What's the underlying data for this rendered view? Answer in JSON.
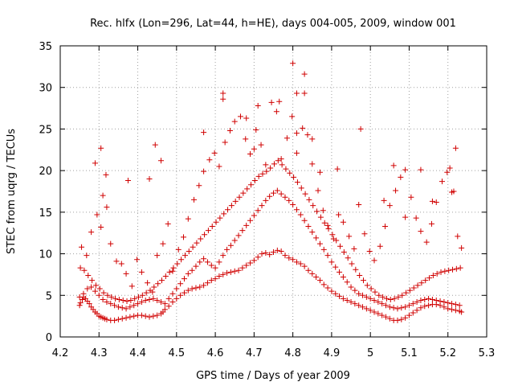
{
  "chart_data": {
    "type": "scatter",
    "title": "Rec. hlfx (Lon=296, Lat=44, h=HE), days 004-005, 2009, window 001",
    "xlabel": "GPS time / Days of year 2009",
    "ylabel": "STEC from uqrg / TECUs",
    "xlim": [
      4.2,
      5.3
    ],
    "ylim": [
      0,
      35
    ],
    "xticks": [
      "4.2",
      "4.3",
      "4.4",
      "4.5",
      "4.6",
      "4.7",
      "4.8",
      "4.9",
      "5",
      "5.1",
      "5.2",
      "5.3"
    ],
    "yticks": [
      "0",
      "5",
      "10",
      "15",
      "20",
      "25",
      "30",
      "35"
    ],
    "grid": true,
    "marker": "+",
    "color": "#d00000",
    "series": [
      {
        "x": [
          4.25,
          4.252,
          4.257,
          4.26,
          4.265,
          4.27,
          4.275,
          4.28,
          4.285,
          4.29,
          4.295,
          4.3,
          4.305,
          4.31,
          4.315,
          4.32,
          4.33,
          4.34,
          4.35,
          4.36,
          4.37,
          4.38,
          4.39,
          4.4,
          4.41,
          4.42,
          4.43,
          4.44,
          4.45,
          4.46,
          4.465,
          4.47,
          4.48,
          4.49,
          4.5,
          4.51,
          4.52,
          4.53,
          4.54,
          4.55,
          4.56,
          4.57,
          4.58,
          4.59,
          4.6,
          4.61,
          4.62,
          4.63,
          4.64,
          4.65,
          4.66,
          4.67,
          4.68,
          4.69,
          4.7,
          4.71,
          4.72,
          4.73,
          4.74,
          4.75,
          4.76,
          4.77,
          4.78,
          4.79,
          4.8,
          4.81,
          4.82,
          4.83,
          4.84,
          4.85,
          4.86,
          4.87,
          4.88,
          4.89,
          4.9,
          4.91,
          4.92,
          4.93,
          4.94,
          4.95,
          4.96,
          4.97,
          4.98,
          4.99,
          5.0,
          5.01,
          5.02,
          5.03,
          5.04,
          5.05,
          5.06,
          5.07,
          5.08,
          5.09,
          5.1,
          5.11,
          5.12,
          5.13,
          5.14,
          5.15,
          5.16,
          5.17,
          5.18,
          5.19,
          5.2,
          5.21,
          5.22,
          5.23,
          5.235
        ],
        "y": [
          3.8,
          4.1,
          4.5,
          4.8,
          4.6,
          4.3,
          4.0,
          3.6,
          3.3,
          3.0,
          2.8,
          2.5,
          2.4,
          2.3,
          2.2,
          2.1,
          2.0,
          2.0,
          2.1,
          2.2,
          2.3,
          2.4,
          2.5,
          2.6,
          2.6,
          2.5,
          2.4,
          2.5,
          2.6,
          2.8,
          3.0,
          3.3,
          3.7,
          4.2,
          4.6,
          5.0,
          5.3,
          5.6,
          5.8,
          5.9,
          6.0,
          6.2,
          6.5,
          6.8,
          7.0,
          7.3,
          7.5,
          7.7,
          7.8,
          7.9,
          8.0,
          8.3,
          8.6,
          8.9,
          9.2,
          9.6,
          10.0,
          10.1,
          9.9,
          10.2,
          10.4,
          10.3,
          9.8,
          9.5,
          9.3,
          9.0,
          8.8,
          8.5,
          8.0,
          7.6,
          7.2,
          6.8,
          6.3,
          5.9,
          5.5,
          5.2,
          4.9,
          4.6,
          4.4,
          4.2,
          4.0,
          3.8,
          3.6,
          3.4,
          3.2,
          3.0,
          2.8,
          2.6,
          2.4,
          2.2,
          2.0,
          2.0,
          2.1,
          2.3,
          2.6,
          2.9,
          3.2,
          3.5,
          3.7,
          3.8,
          3.9,
          3.9,
          3.8,
          3.6,
          3.4,
          3.3,
          3.2,
          3.1,
          3.0
        ]
      },
      {
        "x": [
          4.25,
          4.26,
          4.27,
          4.28,
          4.29,
          4.3,
          4.31,
          4.32,
          4.33,
          4.34,
          4.35,
          4.36,
          4.37,
          4.38,
          4.39,
          4.4,
          4.41,
          4.42,
          4.43,
          4.44,
          4.45,
          4.46,
          4.47,
          4.48,
          4.49,
          4.5,
          4.51,
          4.52,
          4.53,
          4.54,
          4.55,
          4.56,
          4.57,
          4.58,
          4.59,
          4.6,
          4.61,
          4.62,
          4.63,
          4.64,
          4.65,
          4.66,
          4.67,
          4.68,
          4.69,
          4.7,
          4.71,
          4.72,
          4.73,
          4.74,
          4.75,
          4.76,
          4.77,
          4.78,
          4.79,
          4.8,
          4.81,
          4.82,
          4.83,
          4.84,
          4.85,
          4.86,
          4.87,
          4.88,
          4.89,
          4.9,
          4.91,
          4.92,
          4.93,
          4.94,
          4.95,
          4.96,
          4.97,
          4.98,
          4.99,
          5.0,
          5.01,
          5.02,
          5.03,
          5.04,
          5.05,
          5.06,
          5.07,
          5.08,
          5.09,
          5.1,
          5.11,
          5.12,
          5.13,
          5.14,
          5.15,
          5.16,
          5.17,
          5.18,
          5.19,
          5.2,
          5.21,
          5.22,
          5.23
        ],
        "y": [
          4.8,
          5.2,
          5.8,
          6.0,
          5.5,
          5.0,
          4.5,
          4.2,
          4.0,
          3.8,
          3.6,
          3.5,
          3.4,
          3.6,
          3.8,
          4.0,
          4.2,
          4.4,
          4.5,
          4.6,
          4.4,
          4.2,
          4.0,
          4.6,
          5.2,
          5.8,
          6.4,
          7.0,
          7.6,
          8.0,
          8.5,
          9.0,
          9.4,
          9.0,
          8.6,
          8.3,
          9.0,
          9.8,
          10.5,
          11.0,
          11.6,
          12.2,
          12.8,
          13.4,
          14.0,
          14.6,
          15.2,
          15.8,
          16.4,
          16.9,
          17.3,
          17.6,
          17.2,
          16.8,
          16.4,
          15.9,
          15.3,
          14.7,
          14.0,
          13.3,
          12.6,
          11.9,
          11.2,
          10.5,
          9.8,
          9.0,
          8.4,
          7.8,
          7.2,
          6.6,
          6.0,
          5.6,
          5.2,
          5.0,
          4.8,
          4.6,
          4.4,
          4.2,
          4.0,
          3.8,
          3.6,
          3.5,
          3.4,
          3.5,
          3.6,
          3.8,
          4.0,
          4.2,
          4.4,
          4.5,
          4.6,
          4.5,
          4.4,
          4.3,
          4.2,
          4.1,
          4.0,
          3.9,
          3.8
        ]
      },
      {
        "x": [
          4.252,
          4.262,
          4.272,
          4.282,
          4.292,
          4.302,
          4.312,
          4.322,
          4.332,
          4.342,
          4.352,
          4.362,
          4.372,
          4.382,
          4.392,
          4.402,
          4.412,
          4.422,
          4.432,
          4.442,
          4.452,
          4.462,
          4.472,
          4.482,
          4.492,
          4.502,
          4.512,
          4.522,
          4.532,
          4.542,
          4.552,
          4.562,
          4.572,
          4.582,
          4.592,
          4.602,
          4.612,
          4.622,
          4.632,
          4.642,
          4.652,
          4.662,
          4.672,
          4.682,
          4.692,
          4.702,
          4.712,
          4.722,
          4.732,
          4.742,
          4.752,
          4.762,
          4.772,
          4.782,
          4.792,
          4.802,
          4.812,
          4.822,
          4.832,
          4.842,
          4.852,
          4.862,
          4.872,
          4.882,
          4.892,
          4.902,
          4.912,
          4.922,
          4.932,
          4.942,
          4.952,
          4.962,
          4.972,
          4.982,
          4.992,
          5.002,
          5.012,
          5.022,
          5.032,
          5.042,
          5.052,
          5.062,
          5.072,
          5.082,
          5.092,
          5.102,
          5.112,
          5.122,
          5.132,
          5.142,
          5.152,
          5.162,
          5.172,
          5.182,
          5.192,
          5.202,
          5.212,
          5.222,
          5.232
        ],
        "y": [
          8.3,
          8.0,
          7.4,
          6.8,
          6.2,
          5.8,
          5.3,
          5.0,
          4.8,
          4.6,
          4.5,
          4.4,
          4.3,
          4.4,
          4.6,
          4.8,
          5.0,
          5.3,
          5.6,
          6.0,
          6.4,
          6.8,
          7.3,
          7.8,
          8.3,
          8.8,
          9.3,
          9.8,
          10.3,
          10.8,
          11.3,
          11.8,
          12.3,
          12.8,
          13.3,
          13.8,
          14.3,
          14.8,
          15.3,
          15.8,
          16.3,
          16.8,
          17.3,
          17.8,
          18.3,
          18.8,
          19.3,
          19.6,
          19.9,
          20.3,
          20.8,
          21.2,
          20.7,
          20.2,
          19.7,
          19.2,
          18.6,
          17.9,
          17.2,
          16.5,
          15.8,
          15.1,
          14.4,
          13.7,
          13.0,
          12.3,
          11.6,
          10.9,
          10.2,
          9.5,
          8.8,
          8.1,
          7.4,
          6.8,
          6.2,
          5.8,
          5.4,
          5.0,
          4.8,
          4.6,
          4.5,
          4.6,
          4.8,
          5.0,
          5.3,
          5.6,
          5.9,
          6.2,
          6.5,
          6.8,
          7.1,
          7.4,
          7.6,
          7.8,
          7.9,
          8.0,
          8.1,
          8.2,
          8.3
        ]
      },
      {
        "x": [
          4.255,
          4.268,
          4.28,
          4.295,
          4.305,
          4.318,
          4.33,
          4.345,
          4.358,
          4.37,
          4.385,
          4.398,
          4.41,
          4.425,
          4.438,
          4.45,
          4.465,
          4.478,
          4.49,
          4.505,
          4.518,
          4.53,
          4.545,
          4.558,
          4.57,
          4.585,
          4.598,
          4.61,
          4.625,
          4.638,
          4.65,
          4.665,
          4.678,
          4.69,
          4.705,
          4.718,
          4.73,
          4.745,
          4.758,
          4.77,
          4.785,
          4.798,
          4.81,
          4.825,
          4.838,
          4.85,
          4.865,
          4.878,
          4.89,
          4.905,
          4.918,
          4.93,
          4.945,
          4.958,
          4.97,
          4.985,
          4.998,
          5.01,
          5.025,
          5.038,
          5.05,
          5.065,
          5.078,
          5.09,
          5.105,
          5.118,
          5.13,
          5.145,
          5.158,
          5.17,
          5.185,
          5.198,
          5.21,
          5.225,
          5.235
        ],
        "y": [
          10.8,
          9.8,
          12.6,
          14.7,
          13.2,
          19.5,
          11.2,
          9.1,
          8.8,
          7.6,
          6.1,
          9.3,
          7.8,
          6.5,
          5.4,
          9.8,
          11.2,
          13.6,
          7.9,
          10.5,
          12.0,
          14.2,
          16.5,
          18.2,
          19.9,
          21.3,
          22.1,
          20.5,
          23.4,
          24.8,
          25.9,
          26.5,
          23.8,
          22.0,
          24.9,
          23.1,
          20.7,
          28.2,
          27.1,
          21.4,
          23.9,
          26.5,
          29.3,
          25.1,
          24.3,
          20.8,
          17.6,
          15.2,
          13.4,
          11.8,
          14.7,
          13.8,
          12.1,
          10.6,
          15.9,
          12.4,
          10.3,
          9.2,
          10.9,
          13.3,
          15.8,
          17.6,
          19.2,
          20.1,
          16.8,
          14.3,
          12.7,
          11.4,
          13.6,
          16.2,
          18.7,
          19.8,
          17.4,
          12.1,
          10.7
        ]
      },
      {
        "x": [
          4.305,
          4.31,
          4.29,
          4.32,
          4.375,
          4.43,
          4.445,
          4.46,
          4.57,
          4.62,
          4.62,
          4.68,
          4.7,
          4.71,
          4.765,
          4.8,
          4.81,
          4.81,
          4.83,
          4.83,
          4.85,
          4.87,
          4.915,
          4.975,
          5.035,
          5.06,
          5.09,
          5.13,
          5.16,
          5.205,
          5.22,
          5.215
        ],
        "y": [
          22.7,
          17.0,
          20.9,
          15.6,
          18.8,
          19.0,
          23.1,
          21.2,
          24.6,
          28.6,
          29.3,
          26.3,
          22.6,
          27.8,
          28.3,
          32.9,
          24.5,
          22.1,
          31.6,
          29.3,
          23.8,
          19.8,
          20.2,
          25.0,
          16.4,
          20.6,
          14.4,
          20.1,
          16.3,
          20.3,
          22.7,
          17.5
        ]
      }
    ]
  }
}
